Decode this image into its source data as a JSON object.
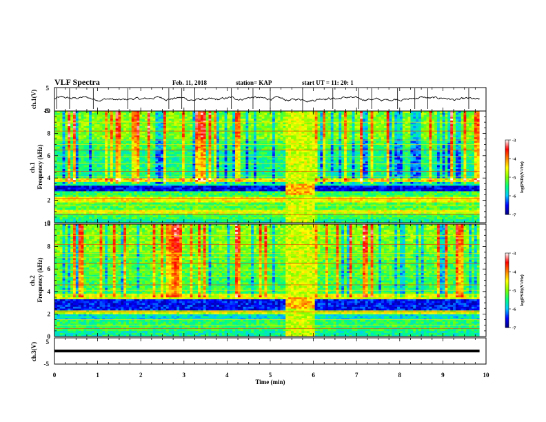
{
  "header": {
    "title": "VLF Spectra",
    "date": "Feb. 11, 2018",
    "station": "station= KAP",
    "start": "start  UT =   11: 20: 1"
  },
  "chart_data": [
    {
      "type": "line",
      "name": "ch1-waveform",
      "ylabel": "ch.1(V)",
      "ylim": [
        -5,
        5
      ],
      "yticks": [
        "5",
        "-5"
      ],
      "xlim": [
        0,
        10
      ],
      "x_start": 0,
      "x_end": 9.85,
      "y_mean": 0.2,
      "y_amplitude": 1.3,
      "spike_minutes": [
        0.05,
        0.35,
        0.9,
        1.7,
        2.65,
        2.95,
        3.25,
        4.1,
        4.6,
        5.0,
        5.75,
        6.45,
        7.05,
        7.35,
        7.95,
        8.35,
        8.65,
        9.6
      ]
    },
    {
      "type": "heatmap",
      "name": "ch1-spectrogram",
      "ylabel": "ch.1\nFrequency (kHz)",
      "ylim": [
        0,
        10
      ],
      "yticks": [
        "0",
        "2",
        "4",
        "6",
        "8",
        "10"
      ],
      "xlim": [
        0,
        10
      ],
      "data_extent_minutes": [
        0,
        9.85
      ],
      "noisy_interval_minutes": [
        5.35,
        6.05
      ],
      "colorbar": {
        "label": "log(PSD)(V²/Hz)",
        "range": [
          -7,
          -3
        ],
        "ticks": [
          "-3",
          "-4",
          "-5",
          "-6",
          "-7"
        ],
        "colors": [
          "#000080",
          "#0000ff",
          "#00c8ff",
          "#00ff80",
          "#80ff00",
          "#ffff00",
          "#ff8000",
          "#ff0000",
          "#ffffff"
        ]
      },
      "band_levels_log_psd": [
        {
          "f": [
            0.0,
            0.3
          ],
          "level": -5.6
        },
        {
          "f": [
            0.3,
            0.9
          ],
          "level": -5.3
        },
        {
          "f": [
            0.9,
            1.1
          ],
          "level": -4.6
        },
        {
          "f": [
            1.1,
            1.9
          ],
          "level": -5.2
        },
        {
          "f": [
            1.9,
            2.3
          ],
          "level": -4.5
        },
        {
          "f": [
            2.3,
            2.8
          ],
          "level": -5.3
        },
        {
          "f": [
            2.8,
            3.4
          ],
          "level": -6.6
        },
        {
          "f": [
            3.4,
            3.6
          ],
          "level": -5.6
        },
        {
          "f": [
            3.6,
            4.0
          ],
          "level": -4.3
        },
        {
          "f": [
            4.0,
            6.5
          ],
          "level": -5.5
        },
        {
          "f": [
            6.5,
            7.5
          ],
          "level": -5.3
        },
        {
          "f": [
            7.5,
            10.0
          ],
          "level": -5.0
        }
      ]
    },
    {
      "type": "heatmap",
      "name": "ch2-spectrogram",
      "ylabel": "ch.2\nFrequency (kHz)",
      "ylim": [
        0,
        10
      ],
      "yticks": [
        "0",
        "2",
        "4",
        "6",
        "8",
        "10"
      ],
      "xlim": [
        0,
        10
      ],
      "data_extent_minutes": [
        0,
        9.85
      ],
      "noisy_interval_minutes": [
        5.35,
        6.05
      ],
      "colorbar": {
        "label": "log(PSD)(V²/Hz)",
        "range": [
          -7,
          -3
        ],
        "ticks": [
          "-3",
          "-4",
          "-5",
          "-6",
          "-7"
        ],
        "colors": [
          "#000080",
          "#0000ff",
          "#00c8ff",
          "#00ff80",
          "#80ff00",
          "#ffff00",
          "#ff8000",
          "#ff0000",
          "#ffffff"
        ]
      },
      "band_levels_log_psd": [
        {
          "f": [
            0.0,
            0.5
          ],
          "level": -5.6
        },
        {
          "f": [
            0.5,
            1.5
          ],
          "level": -5.4
        },
        {
          "f": [
            1.5,
            2.0
          ],
          "level": -5.8
        },
        {
          "f": [
            2.0,
            2.4
          ],
          "level": -4.7
        },
        {
          "f": [
            2.4,
            3.4
          ],
          "level": -6.5
        },
        {
          "f": [
            3.4,
            3.8
          ],
          "level": -4.6
        },
        {
          "f": [
            3.8,
            5.5
          ],
          "level": -5.3
        },
        {
          "f": [
            5.5,
            7.5
          ],
          "level": -5.2
        },
        {
          "f": [
            7.5,
            10.0
          ],
          "level": -5.0
        }
      ]
    },
    {
      "type": "line",
      "name": "ch3-waveform",
      "ylabel": "ch.3(V)",
      "ylim": [
        -5,
        5
      ],
      "yticks": [
        "5",
        "-5"
      ],
      "xlim": [
        0,
        10
      ],
      "x_start": 0,
      "x_end": 9.85,
      "y_mean": 0.0,
      "y_amplitude": 0.0
    }
  ],
  "xaxis": {
    "label": "Time (min)",
    "ticks": [
      "0",
      "1",
      "2",
      "3",
      "4",
      "5",
      "6",
      "7",
      "8",
      "9",
      "10"
    ]
  }
}
